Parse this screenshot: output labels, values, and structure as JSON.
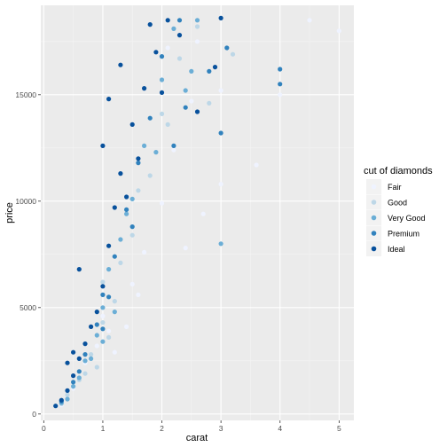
{
  "chart_data": {
    "type": "scatter",
    "xlabel": "carat",
    "ylabel": "price",
    "xlim": [
      -0.05,
      5.25
    ],
    "ylim": [
      -300,
      19200
    ],
    "x_ticks": [
      0,
      1,
      2,
      3,
      4,
      5
    ],
    "y_ticks": [
      0,
      5000,
      10000,
      15000
    ],
    "y_tick_labels": [
      "0",
      "5000",
      "10000",
      "15000"
    ],
    "grid": true,
    "legend": {
      "title": "cut of diamonds",
      "placement": "right"
    },
    "series": [
      {
        "name": "Fair",
        "color": "#eff3ff",
        "points": [
          [
            0.3,
            420
          ],
          [
            0.5,
            1200
          ],
          [
            0.7,
            2400
          ],
          [
            0.9,
            3200
          ],
          [
            1.0,
            4600
          ],
          [
            1.1,
            3900
          ],
          [
            1.5,
            6100
          ],
          [
            1.7,
            7600
          ],
          [
            2.0,
            9900
          ],
          [
            2.2,
            12400
          ],
          [
            2.5,
            14700
          ],
          [
            3.0,
            10800
          ],
          [
            3.0,
            15200
          ],
          [
            3.6,
            11700
          ],
          [
            4.0,
            15000
          ],
          [
            4.5,
            18500
          ],
          [
            5.0,
            18000
          ],
          [
            1.2,
            2900
          ],
          [
            1.4,
            4100
          ],
          [
            1.6,
            5600
          ],
          [
            2.1,
            17200
          ],
          [
            2.4,
            7800
          ],
          [
            2.7,
            9400
          ],
          [
            2.6,
            17500
          ]
        ]
      },
      {
        "name": "Good",
        "color": "#bdd7e7",
        "points": [
          [
            0.3,
            480
          ],
          [
            0.4,
            900
          ],
          [
            0.6,
            1600
          ],
          [
            0.8,
            2800
          ],
          [
            1.0,
            4300
          ],
          [
            1.0,
            6200
          ],
          [
            1.2,
            5300
          ],
          [
            1.5,
            8400
          ],
          [
            1.8,
            11200
          ],
          [
            2.0,
            14100
          ],
          [
            2.3,
            16700
          ],
          [
            2.6,
            18200
          ],
          [
            1.1,
            3600
          ],
          [
            0.9,
            2200
          ],
          [
            3.2,
            16900
          ],
          [
            2.8,
            14600
          ],
          [
            1.3,
            7100
          ],
          [
            0.7,
            1900
          ],
          [
            2.1,
            13600
          ],
          [
            1.6,
            10500
          ]
        ]
      },
      {
        "name": "Very Good",
        "color": "#6baed6",
        "points": [
          [
            0.3,
            520
          ],
          [
            0.5,
            1300
          ],
          [
            0.7,
            2500
          ],
          [
            0.9,
            3700
          ],
          [
            1.0,
            5000
          ],
          [
            1.1,
            6800
          ],
          [
            1.3,
            8200
          ],
          [
            1.5,
            10100
          ],
          [
            1.7,
            12600
          ],
          [
            2.0,
            15700
          ],
          [
            2.2,
            18100
          ],
          [
            2.5,
            16100
          ],
          [
            1.0,
            3400
          ],
          [
            0.4,
            700
          ],
          [
            3.0,
            8000
          ],
          [
            0.6,
            1700
          ],
          [
            1.2,
            4800
          ],
          [
            1.9,
            12300
          ],
          [
            2.4,
            15200
          ],
          [
            0.8,
            2600
          ],
          [
            1.4,
            9400
          ],
          [
            2.6,
            18500
          ]
        ]
      },
      {
        "name": "Premium",
        "color": "#3182bd",
        "points": [
          [
            0.3,
            600
          ],
          [
            0.5,
            1500
          ],
          [
            0.7,
            2800
          ],
          [
            0.9,
            4200
          ],
          [
            1.0,
            5600
          ],
          [
            1.2,
            7400
          ],
          [
            1.4,
            9600
          ],
          [
            1.6,
            11800
          ],
          [
            1.8,
            13900
          ],
          [
            2.0,
            16800
          ],
          [
            2.3,
            18500
          ],
          [
            3.1,
            17200
          ],
          [
            4.0,
            16200
          ],
          [
            4.0,
            15500
          ],
          [
            1.0,
            4000
          ],
          [
            0.6,
            2000
          ],
          [
            1.5,
            8800
          ],
          [
            2.2,
            12600
          ],
          [
            2.4,
            14400
          ],
          [
            1.1,
            5500
          ],
          [
            2.8,
            16100
          ],
          [
            3.0,
            13200
          ]
        ]
      },
      {
        "name": "Ideal",
        "color": "#08519c",
        "points": [
          [
            0.2,
            380
          ],
          [
            0.3,
            650
          ],
          [
            0.4,
            1100
          ],
          [
            0.5,
            1800
          ],
          [
            0.6,
            2600
          ],
          [
            0.7,
            3300
          ],
          [
            0.8,
            4100
          ],
          [
            0.9,
            4800
          ],
          [
            1.0,
            6000
          ],
          [
            1.1,
            7900
          ],
          [
            1.2,
            9700
          ],
          [
            1.3,
            11300
          ],
          [
            1.5,
            13600
          ],
          [
            1.7,
            15300
          ],
          [
            1.9,
            17000
          ],
          [
            2.1,
            18500
          ],
          [
            2.3,
            17800
          ],
          [
            2.0,
            15100
          ],
          [
            1.4,
            10200
          ],
          [
            1.6,
            12000
          ],
          [
            0.5,
            2900
          ],
          [
            0.6,
            6800
          ],
          [
            1.1,
            14800
          ],
          [
            1.3,
            16400
          ],
          [
            1.8,
            18300
          ],
          [
            3.0,
            18600
          ],
          [
            2.6,
            14200
          ],
          [
            0.4,
            2400
          ],
          [
            1.0,
            12600
          ],
          [
            2.9,
            16300
          ]
        ]
      }
    ]
  },
  "colors": {
    "panel": "#ebebeb",
    "grid_major": "#ffffff",
    "grid_minor": "#f4f4f4",
    "tick": "#333333"
  }
}
